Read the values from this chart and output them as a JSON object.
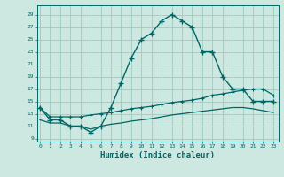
{
  "title": "",
  "xlabel": "Humidex (Indice chaleur)",
  "background_color": "#cce8e0",
  "grid_color": "#99ccbf",
  "line_color": "#006666",
  "x_ticks": [
    0,
    1,
    2,
    3,
    4,
    5,
    6,
    7,
    8,
    9,
    10,
    11,
    12,
    13,
    14,
    15,
    16,
    17,
    18,
    19,
    20,
    21,
    22,
    23
  ],
  "yticks": [
    9,
    11,
    13,
    15,
    17,
    19,
    21,
    23,
    25,
    27,
    29
  ],
  "ylim": [
    8.5,
    30.5
  ],
  "xlim": [
    -0.3,
    23.5
  ],
  "main_line_x": [
    0,
    1,
    2,
    3,
    4,
    5,
    6,
    7,
    8,
    9,
    10,
    11,
    12,
    13,
    14,
    15,
    16,
    17,
    18,
    19,
    20,
    21,
    22,
    23
  ],
  "main_line_y": [
    14,
    12,
    12,
    11,
    11,
    10,
    11,
    14,
    18,
    22,
    25,
    26,
    28,
    29,
    28,
    27,
    23,
    23,
    19,
    17,
    17,
    15,
    15,
    15
  ],
  "upper_line_x": [
    0,
    1,
    2,
    3,
    4,
    5,
    6,
    7,
    8,
    9,
    10,
    11,
    12,
    13,
    14,
    15,
    16,
    17,
    18,
    19,
    20,
    21,
    22,
    23
  ],
  "upper_line_y": [
    14,
    12.5,
    12.5,
    12.5,
    12.5,
    12.8,
    13,
    13.2,
    13.5,
    13.8,
    14,
    14.2,
    14.5,
    14.8,
    15,
    15.2,
    15.5,
    16,
    16.2,
    16.5,
    16.8,
    17,
    17,
    16
  ],
  "lower_line_x": [
    0,
    1,
    2,
    3,
    4,
    5,
    6,
    7,
    8,
    9,
    10,
    11,
    12,
    13,
    14,
    15,
    16,
    17,
    18,
    19,
    20,
    21,
    22,
    23
  ],
  "lower_line_y": [
    12,
    11.5,
    11.5,
    11,
    11,
    10.5,
    11,
    11.3,
    11.5,
    11.8,
    12,
    12.2,
    12.5,
    12.8,
    13,
    13.2,
    13.4,
    13.6,
    13.8,
    14,
    14,
    13.8,
    13.5,
    13.2
  ]
}
